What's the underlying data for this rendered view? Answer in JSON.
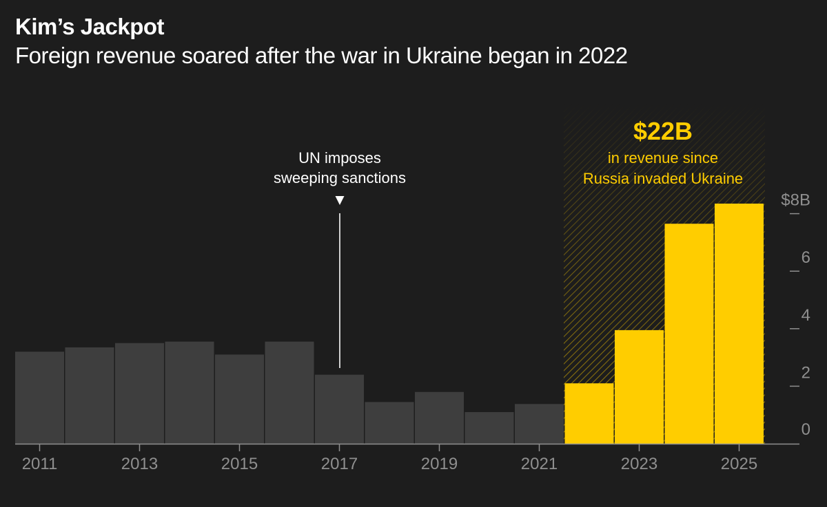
{
  "title": "Kim’s Jackpot",
  "subtitle": "Foreign revenue soared after the war in Ukraine began in 2022",
  "colors": {
    "background": "#1d1d1d",
    "bar_default": "#3e3e3e",
    "bar_highlight": "#ffcd00",
    "axis": "#8f8f8f"
  },
  "chart_data": {
    "type": "bar",
    "categories": [
      "2011",
      "2012",
      "2013",
      "2014",
      "2015",
      "2016",
      "2017",
      "2018",
      "2019",
      "2020",
      "2021",
      "2022",
      "2023",
      "2024",
      "2025"
    ],
    "values": [
      3.2,
      3.35,
      3.5,
      3.55,
      3.1,
      3.55,
      2.4,
      1.45,
      1.8,
      1.1,
      1.38,
      2.1,
      3.95,
      7.65,
      8.35
    ],
    "highlight_from": "2022",
    "x_tick_labels": [
      "2011",
      "2013",
      "2015",
      "2017",
      "2019",
      "2021",
      "2023",
      "2025"
    ],
    "y_tick_labels": [
      "0",
      "2",
      "4",
      "6",
      "$8B"
    ],
    "y_ticks": [
      0,
      2,
      4,
      6,
      8
    ],
    "ylim": [
      0,
      8.4
    ],
    "grid": false,
    "y_axis_position": "right",
    "annotations": {
      "sanctions": {
        "year": "2017",
        "lines": [
          "UN imposes",
          "sweeping sanctions"
        ]
      },
      "war": {
        "headline": "$22B",
        "lines": [
          "in revenue since",
          "Russia invaded Ukraine"
        ]
      }
    }
  }
}
